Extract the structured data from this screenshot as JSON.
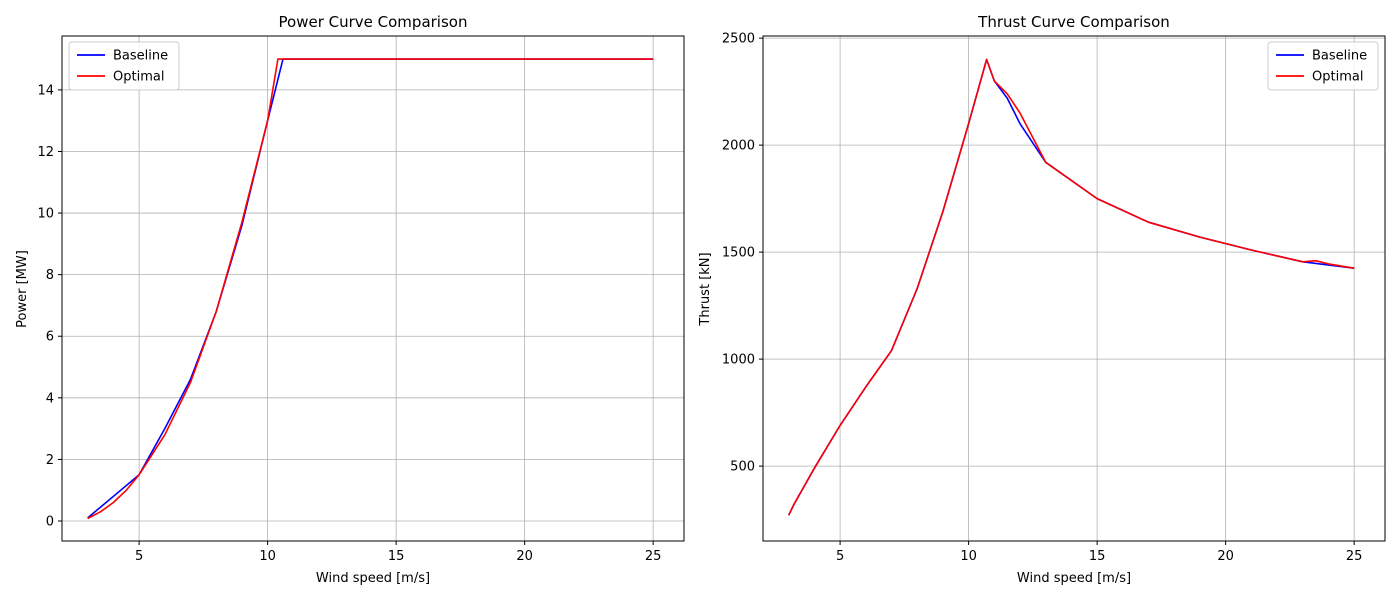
{
  "chart_data": [
    {
      "type": "line",
      "title": "Power Curve Comparison",
      "xlabel": "Wind speed [m/s]",
      "ylabel": "Power [MW]",
      "xlim": [
        2,
        26.2
      ],
      "ylim": [
        -0.65,
        15.75
      ],
      "xticks": [
        5,
        10,
        15,
        20,
        25
      ],
      "yticks": [
        0,
        2,
        4,
        6,
        8,
        10,
        12,
        14
      ],
      "grid": true,
      "legend_position": "upper-left",
      "series": [
        {
          "name": "Baseline",
          "color": "#0000ff",
          "x": [
            3,
            5,
            6,
            7,
            8,
            9,
            10,
            10.6,
            11,
            25
          ],
          "y": [
            0.1,
            1.5,
            3.0,
            4.6,
            6.8,
            9.6,
            13.0,
            15.0,
            15.0,
            15.0
          ]
        },
        {
          "name": "Optimal",
          "color": "#ff0000",
          "x": [
            3,
            3.5,
            4,
            4.5,
            5,
            6,
            7,
            8,
            9,
            10,
            10.4,
            11,
            25
          ],
          "y": [
            0.08,
            0.3,
            0.6,
            1.0,
            1.5,
            2.8,
            4.5,
            6.8,
            9.7,
            13.0,
            15.0,
            15.0,
            15.0
          ]
        }
      ]
    },
    {
      "type": "line",
      "title": "Thrust Curve Comparison",
      "xlabel": "Wind speed [m/s]",
      "ylabel": "Thrust [kN]",
      "xlim": [
        2,
        26.2
      ],
      "ylim": [
        150,
        2510
      ],
      "xticks": [
        5,
        10,
        15,
        20,
        25
      ],
      "yticks": [
        500,
        1000,
        1500,
        2000,
        2500
      ],
      "grid": true,
      "legend_position": "upper-right",
      "series": [
        {
          "name": "Baseline",
          "color": "#0000ff",
          "x": [
            3,
            3.2,
            4,
            5,
            6,
            7,
            8,
            9,
            10,
            10.7,
            11,
            11.5,
            12,
            13,
            15,
            17,
            19,
            21,
            23,
            25
          ],
          "y": [
            270,
            320,
            490,
            690,
            870,
            1040,
            1330,
            1690,
            2100,
            2400,
            2300,
            2220,
            2100,
            1920,
            1750,
            1640,
            1570,
            1510,
            1455,
            1425
          ]
        },
        {
          "name": "Optimal",
          "color": "#ff0000",
          "x": [
            3,
            3.2,
            4,
            5,
            6,
            7,
            8,
            9,
            10,
            10.7,
            11,
            11.5,
            12,
            13,
            15,
            17,
            19,
            21,
            23,
            23.5,
            24,
            25
          ],
          "y": [
            270,
            320,
            490,
            690,
            870,
            1040,
            1330,
            1690,
            2100,
            2400,
            2300,
            2240,
            2150,
            1920,
            1750,
            1640,
            1570,
            1510,
            1455,
            1460,
            1445,
            1425
          ]
        }
      ]
    }
  ]
}
